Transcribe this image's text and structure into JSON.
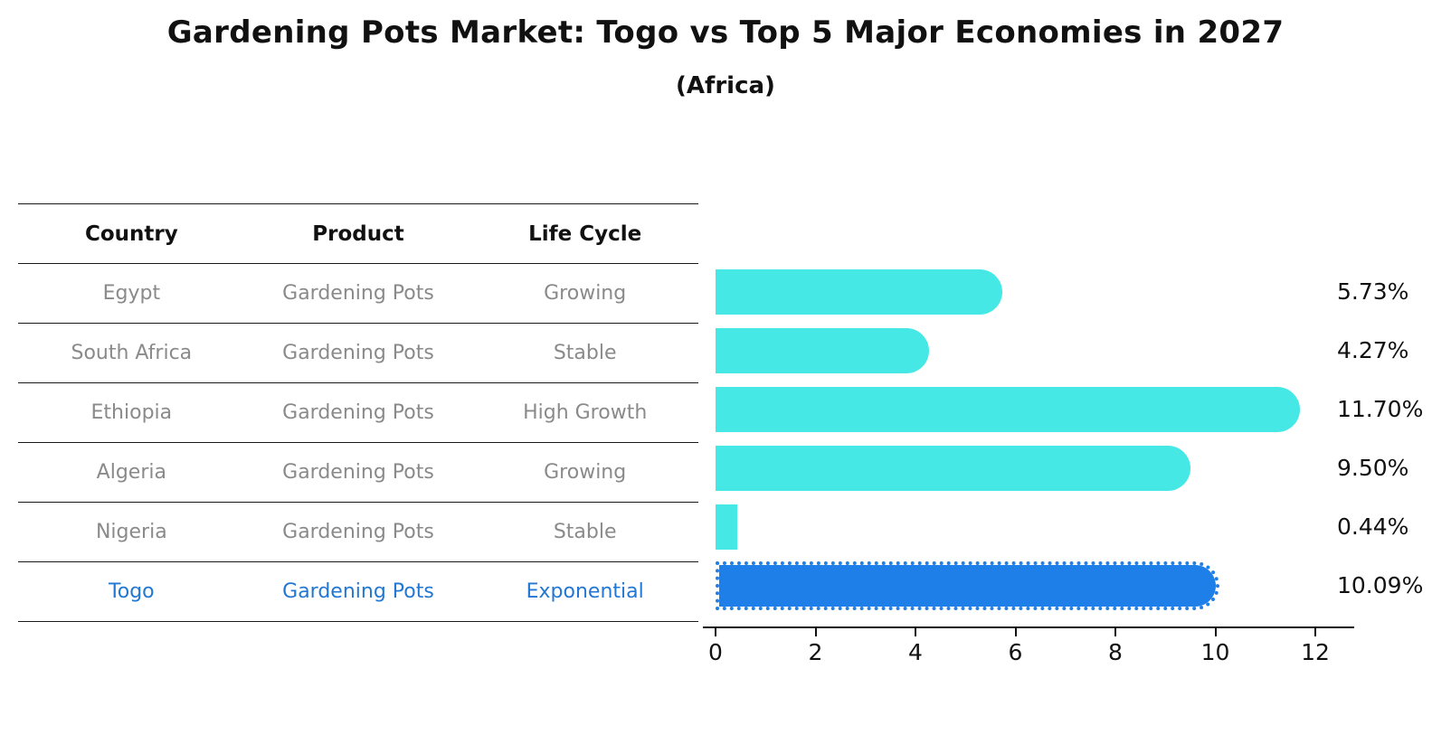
{
  "title": "Gardening Pots Market: Togo vs Top 5 Major Economies in 2027",
  "subtitle": "(Africa)",
  "table": {
    "headers": [
      "Country",
      "Product",
      "Life Cycle"
    ],
    "rows": [
      {
        "country": "Egypt",
        "product": "Gardening Pots",
        "life_cycle": "Growing",
        "highlight": false
      },
      {
        "country": "South Africa",
        "product": "Gardening Pots",
        "life_cycle": "Stable",
        "highlight": false
      },
      {
        "country": "Ethiopia",
        "product": "Gardening Pots",
        "life_cycle": "High Growth",
        "highlight": false
      },
      {
        "country": "Algeria",
        "product": "Gardening Pots",
        "life_cycle": "Growing",
        "highlight": false
      },
      {
        "country": "Nigeria",
        "product": "Gardening Pots",
        "life_cycle": "Stable",
        "highlight": false
      },
      {
        "country": "Togo",
        "product": "Gardening Pots",
        "life_cycle": "Exponential",
        "highlight": true
      }
    ]
  },
  "chart_data": {
    "type": "bar",
    "orientation": "horizontal",
    "title": "Gardening Pots Market: Togo vs Top 5 Major Economies in 2027",
    "subtitle": "(Africa)",
    "categories": [
      "Egypt",
      "South Africa",
      "Ethiopia",
      "Algeria",
      "Nigeria",
      "Togo"
    ],
    "values": [
      5.73,
      4.27,
      11.7,
      9.5,
      0.44,
      10.09
    ],
    "value_labels": [
      "5.73%",
      "4.27%",
      "11.70%",
      "9.50%",
      "0.44%",
      "10.09%"
    ],
    "x_ticks": [
      0,
      2,
      4,
      6,
      8,
      10,
      12
    ],
    "xlim": [
      0,
      13
    ],
    "xlabel": "",
    "ylabel": "",
    "grid": false,
    "legend": false,
    "highlight_index": 5,
    "colors": {
      "bar": "#45e8e4",
      "highlight_bar": "#1f7fe8",
      "highlight_text": "#2277d2",
      "row_text": "#8a8a8a",
      "header_text": "#111111",
      "axis": "#111111"
    }
  }
}
